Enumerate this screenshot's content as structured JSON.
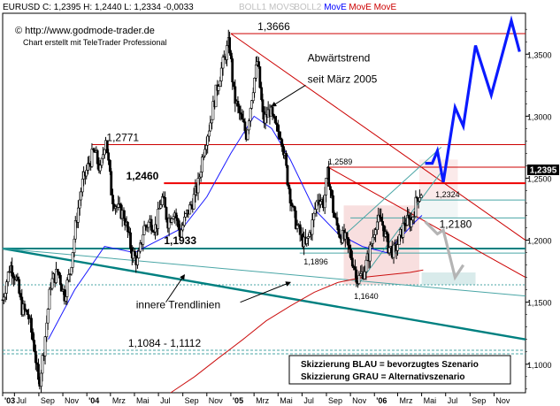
{
  "header": {
    "symbol_quote": "EURUSD C: 1,2395 H: 1,2440 L: 1,2334 -0,0033",
    "indicators": [
      {
        "label": "BOLL1",
        "color": "#c0c0c0"
      },
      {
        "label": "MOVS",
        "color": "#c0c0c0"
      },
      {
        "label": "BOLL2",
        "color": "#c0c0c0"
      },
      {
        "label": "MovE",
        "color": "#0000ff"
      },
      {
        "label": "MovE",
        "color": "#cc0000"
      },
      {
        "label": "MovE",
        "color": "#cc0000"
      }
    ]
  },
  "branding": {
    "copyright": "© http://www.godmode-trader.de",
    "credit": "Chart erstellt mit TeleTrader Professional"
  },
  "current_price": "1,2395",
  "chart_data": {
    "type": "candlestick",
    "ylim": [
      1.077,
      1.383
    ],
    "x_range": [
      "2003-06-01",
      "2007-01-20"
    ],
    "x_ticks": [
      {
        "label": "'03",
        "date": "2003-06-01"
      },
      {
        "label": "Jul",
        "date": "2003-07-01"
      },
      {
        "label": "Sep",
        "date": "2003-09-01"
      },
      {
        "label": "Nov",
        "date": "2003-11-01"
      },
      {
        "label": "'04",
        "date": "2004-01-01"
      },
      {
        "label": "Mrz",
        "date": "2004-03-01"
      },
      {
        "label": "Mai",
        "date": "2004-05-01"
      },
      {
        "label": "Jul",
        "date": "2004-07-01"
      },
      {
        "label": "Sep",
        "date": "2004-09-01"
      },
      {
        "label": "Nov",
        "date": "2004-11-01"
      },
      {
        "label": "'05",
        "date": "2005-01-01"
      },
      {
        "label": "Mrz",
        "date": "2005-03-01"
      },
      {
        "label": "Mai",
        "date": "2005-05-01"
      },
      {
        "label": "Jul",
        "date": "2005-07-01"
      },
      {
        "label": "Sep",
        "date": "2005-09-01"
      },
      {
        "label": "Nov",
        "date": "2005-11-01"
      },
      {
        "label": "'06",
        "date": "2006-01-01"
      },
      {
        "label": "Mrz",
        "date": "2006-03-01"
      },
      {
        "label": "Mai",
        "date": "2006-05-01"
      },
      {
        "label": "Jul",
        "date": "2006-07-01"
      },
      {
        "label": "Sep",
        "date": "2006-09-01"
      },
      {
        "label": "Nov",
        "date": "2006-11-01"
      }
    ],
    "y_ticks": [
      {
        "label": "1,1000",
        "value": 1.1
      },
      {
        "label": "1,1500",
        "value": 1.15
      },
      {
        "label": "1,2000",
        "value": 1.2
      },
      {
        "label": "1,2500",
        "value": 1.25
      },
      {
        "label": "1,3000",
        "value": 1.3
      },
      {
        "label": "1,3500",
        "value": 1.35
      }
    ],
    "grid": "none",
    "price_path": [
      [
        "2003-06-01",
        1.152
      ],
      [
        "2003-06-20",
        1.18
      ],
      [
        "2003-07-05",
        1.17
      ],
      [
        "2003-07-20",
        1.145
      ],
      [
        "2003-08-05",
        1.14
      ],
      [
        "2003-08-20",
        1.115
      ],
      [
        "2003-09-01",
        1.082
      ],
      [
        "2003-09-15",
        1.115
      ],
      [
        "2003-10-01",
        1.165
      ],
      [
        "2003-10-20",
        1.175
      ],
      [
        "2003-11-05",
        1.155
      ],
      [
        "2003-11-20",
        1.175
      ],
      [
        "2003-12-05",
        1.215
      ],
      [
        "2003-12-20",
        1.245
      ],
      [
        "2004-01-05",
        1.26
      ],
      [
        "2004-01-20",
        1.272
      ],
      [
        "2004-02-05",
        1.255
      ],
      [
        "2004-02-18",
        1.285
      ],
      [
        "2004-03-05",
        1.235
      ],
      [
        "2004-03-20",
        1.225
      ],
      [
        "2004-04-05",
        1.22
      ],
      [
        "2004-04-25",
        1.19
      ],
      [
        "2004-05-10",
        1.182
      ],
      [
        "2004-05-25",
        1.21
      ],
      [
        "2004-06-10",
        1.215
      ],
      [
        "2004-06-25",
        1.21
      ],
      [
        "2004-07-10",
        1.235
      ],
      [
        "2004-07-25",
        1.215
      ],
      [
        "2004-08-10",
        1.225
      ],
      [
        "2004-08-25",
        1.205
      ],
      [
        "2004-09-10",
        1.22
      ],
      [
        "2004-09-25",
        1.23
      ],
      [
        "2004-10-10",
        1.245
      ],
      [
        "2004-10-25",
        1.275
      ],
      [
        "2004-11-10",
        1.295
      ],
      [
        "2004-11-25",
        1.32
      ],
      [
        "2004-12-10",
        1.34
      ],
      [
        "2004-12-28",
        1.36
      ],
      [
        "2005-01-10",
        1.315
      ],
      [
        "2005-01-25",
        1.3
      ],
      [
        "2005-02-10",
        1.285
      ],
      [
        "2005-02-25",
        1.32
      ],
      [
        "2005-03-10",
        1.345
      ],
      [
        "2005-03-25",
        1.295
      ],
      [
        "2005-04-10",
        1.305
      ],
      [
        "2005-04-25",
        1.29
      ],
      [
        "2005-05-10",
        1.285
      ],
      [
        "2005-05-25",
        1.25
      ],
      [
        "2005-06-10",
        1.22
      ],
      [
        "2005-06-25",
        1.205
      ],
      [
        "2005-07-10",
        1.195
      ],
      [
        "2005-07-25",
        1.21
      ],
      [
        "2005-08-10",
        1.235
      ],
      [
        "2005-08-25",
        1.23
      ],
      [
        "2005-09-05",
        1.255
      ],
      [
        "2005-09-20",
        1.22
      ],
      [
        "2005-10-05",
        1.205
      ],
      [
        "2005-10-20",
        1.2
      ],
      [
        "2005-11-05",
        1.185
      ],
      [
        "2005-11-20",
        1.168
      ],
      [
        "2005-12-05",
        1.175
      ],
      [
        "2005-12-20",
        1.19
      ],
      [
        "2006-01-05",
        1.215
      ],
      [
        "2006-01-20",
        1.215
      ],
      [
        "2006-02-05",
        1.195
      ],
      [
        "2006-02-20",
        1.19
      ],
      [
        "2006-03-05",
        1.2
      ],
      [
        "2006-03-20",
        1.215
      ],
      [
        "2006-04-05",
        1.215
      ],
      [
        "2006-04-20",
        1.235
      ],
      [
        "2006-05-02",
        1.2395
      ]
    ],
    "moving_average_blue": [
      [
        "2003-09-25",
        1.12
      ],
      [
        "2003-12-01",
        1.16
      ],
      [
        "2004-02-15",
        1.195
      ],
      [
        "2004-05-01",
        1.19
      ],
      [
        "2004-07-01",
        1.2
      ],
      [
        "2004-09-01",
        1.21
      ],
      [
        "2004-11-01",
        1.235
      ],
      [
        "2005-01-01",
        1.27
      ],
      [
        "2005-03-01",
        1.3
      ],
      [
        "2005-04-15",
        1.29
      ],
      [
        "2005-06-01",
        1.265
      ],
      [
        "2005-08-01",
        1.225
      ],
      [
        "2005-10-01",
        1.205
      ],
      [
        "2005-12-01",
        1.195
      ],
      [
        "2006-02-01",
        1.19
      ],
      [
        "2006-04-15",
        1.215
      ],
      [
        "2006-05-02",
        1.22
      ]
    ],
    "moving_average_red": [
      [
        "2004-08-01",
        1.077
      ],
      [
        "2004-10-01",
        1.09
      ],
      [
        "2004-12-01",
        1.105
      ],
      [
        "2005-02-01",
        1.12
      ],
      [
        "2005-04-01",
        1.135
      ],
      [
        "2005-06-01",
        1.147
      ],
      [
        "2005-08-01",
        1.158
      ],
      [
        "2005-10-01",
        1.166
      ],
      [
        "2005-12-01",
        1.17
      ],
      [
        "2006-02-01",
        1.172
      ],
      [
        "2006-04-01",
        1.174
      ],
      [
        "2006-05-05",
        1.176
      ]
    ],
    "horizontal_levels": [
      {
        "value": 1.3666,
        "label": "1,3666",
        "color": "#cc0000"
      },
      {
        "value": 1.2771,
        "label": "1,2771",
        "color": "#cc0000"
      },
      {
        "value": 1.2589,
        "label": "1,2589",
        "color": "#cc0000"
      },
      {
        "value": 1.246,
        "label": "1,2460",
        "color": "#ee0000"
      },
      {
        "value": 1.2324,
        "label": "1,2324",
        "color": "#4aa6a6"
      },
      {
        "value": 1.218,
        "label": "1,2180",
        "color": "#4aa6a6"
      },
      {
        "value": 1.1933,
        "label": "1,1933",
        "color": "#008080"
      },
      {
        "value": 1.1896,
        "label": "1,1896",
        "color": "#4aa6a6"
      },
      {
        "value": 1.164,
        "label": "1,1640",
        "color": "#4aa6a6"
      },
      {
        "value": 1.1112,
        "label": "1,1084 - 1,1112",
        "color": "#4aa6a6"
      },
      {
        "value": 1.1084,
        "label": "",
        "color": "#4aa6a6"
      }
    ],
    "trendlines": [
      {
        "name": "Abwärtstrend",
        "color": "#cc0000",
        "points": [
          [
            "2005-01-01",
            1.3666
          ],
          [
            "2007-01-20",
            1.2
          ]
        ]
      },
      {
        "name": "",
        "color": "#cc0000",
        "points": [
          [
            "2005-09-05",
            1.2589
          ],
          [
            "2007-01-20",
            1.17
          ]
        ]
      },
      {
        "name": "",
        "color": "#008080",
        "points": [
          [
            "2003-06-01",
            1.1933
          ],
          [
            "2007-01-20",
            1.12
          ]
        ]
      },
      {
        "name": "",
        "color": "#4aa6a6",
        "points": [
          [
            "2003-06-01",
            1.1933
          ],
          [
            "2007-01-20",
            1.155
          ]
        ]
      },
      {
        "name": "",
        "color": "#4aa6a6",
        "points": [
          [
            "2005-11-20",
            1.164
          ],
          [
            "2006-06-20",
            1.255
          ]
        ]
      },
      {
        "name": "",
        "color": "#4aa6a6",
        "points": [
          [
            "2005-10-20",
            1.205
          ],
          [
            "2006-06-20",
            1.275
          ]
        ]
      }
    ],
    "scenario_blue": [
      [
        "2006-05-10",
        1.262
      ],
      [
        "2006-05-28",
        1.262
      ],
      [
        "2006-06-10",
        1.272
      ],
      [
        "2006-06-25",
        1.247
      ],
      [
        "2006-07-25",
        1.307
      ],
      [
        "2006-08-15",
        1.292
      ],
      [
        "2006-09-15",
        1.357
      ],
      [
        "2006-10-25",
        1.317
      ],
      [
        "2006-12-15",
        1.377
      ],
      [
        "2007-01-05",
        1.352
      ]
    ],
    "scenario_grey": [
      [
        "2006-05-10",
        1.215
      ],
      [
        "2006-06-10",
        1.205
      ],
      [
        "2006-06-25",
        1.208
      ],
      [
        "2006-07-25",
        1.17
      ],
      [
        "2006-08-15",
        1.18
      ]
    ],
    "annotations": [
      {
        "text": "Abwärtstrend",
        "x": "2005-07-15",
        "y": 1.344
      },
      {
        "text": "seit März 2005",
        "x": "2005-07-15",
        "y": 1.327
      },
      {
        "text": "innere Trendlinien",
        "x": "2004-05-05",
        "y": 1.145
      }
    ]
  },
  "legend_box": {
    "line1": "Skizzierung BLAU = bevorzugtes Szenario",
    "line2": "Skizzierung GRAU = Alternativszenario"
  }
}
